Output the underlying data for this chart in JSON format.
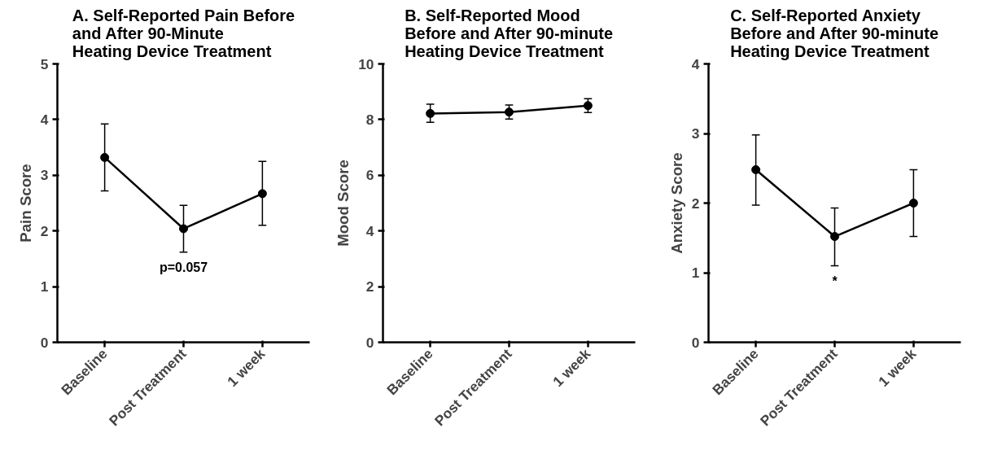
{
  "chart_data": [
    {
      "type": "line",
      "title": "A. Self-Reported Pain Before\nand After 90-Minute\nHeating Device Treatment",
      "ylabel": "Pain Score",
      "categories": [
        "Baseline",
        "Post Treatment",
        "1 week"
      ],
      "series": [
        {
          "color": "#000000",
          "values": [
            3.32,
            2.04,
            2.67
          ],
          "errors": [
            [
              2.72,
              3.92
            ],
            [
              1.62,
              2.46
            ],
            [
              2.1,
              3.25
            ]
          ]
        }
      ],
      "ylim": [
        0,
        5
      ],
      "yticks": [
        0,
        1,
        2,
        3,
        4,
        5
      ],
      "grid": false,
      "marker": "circle",
      "line_style": "solid",
      "annotations": [
        "p=0.057"
      ]
    },
    {
      "type": "line",
      "title": "B. Self-Reported Mood\nBefore and After 90-minute\nHeating Device Treatment",
      "ylabel": "Mood Score",
      "categories": [
        "Baseline",
        "Post Treatment",
        "1 week"
      ],
      "series": [
        {
          "color": "#000000",
          "values": [
            8.22,
            8.27,
            8.5
          ],
          "errors": [
            [
              7.9,
              8.55
            ],
            [
              8.02,
              8.52
            ],
            [
              8.25,
              8.75
            ]
          ]
        }
      ],
      "ylim": [
        0,
        10
      ],
      "yticks": [
        0,
        2,
        4,
        6,
        8,
        10
      ],
      "grid": false,
      "marker": "circle",
      "line_style": "solid"
    },
    {
      "type": "line",
      "title": "C. Self-Reported Anxiety\nBefore and After 90-minute\nHeating Device Treatment",
      "ylabel": "Anxiety Score",
      "categories": [
        "Baseline",
        "Post Treatment",
        "1 week"
      ],
      "series": [
        {
          "color": "#000000",
          "values": [
            2.48,
            1.52,
            2.0
          ],
          "errors": [
            [
              1.97,
              2.98
            ],
            [
              1.1,
              1.93
            ],
            [
              1.52,
              2.48
            ]
          ]
        }
      ],
      "ylim": [
        0,
        4
      ],
      "yticks": [
        0,
        1,
        2,
        3,
        4
      ],
      "grid": false,
      "marker": "circle",
      "line_style": "solid",
      "annotations": [
        "*"
      ]
    }
  ]
}
